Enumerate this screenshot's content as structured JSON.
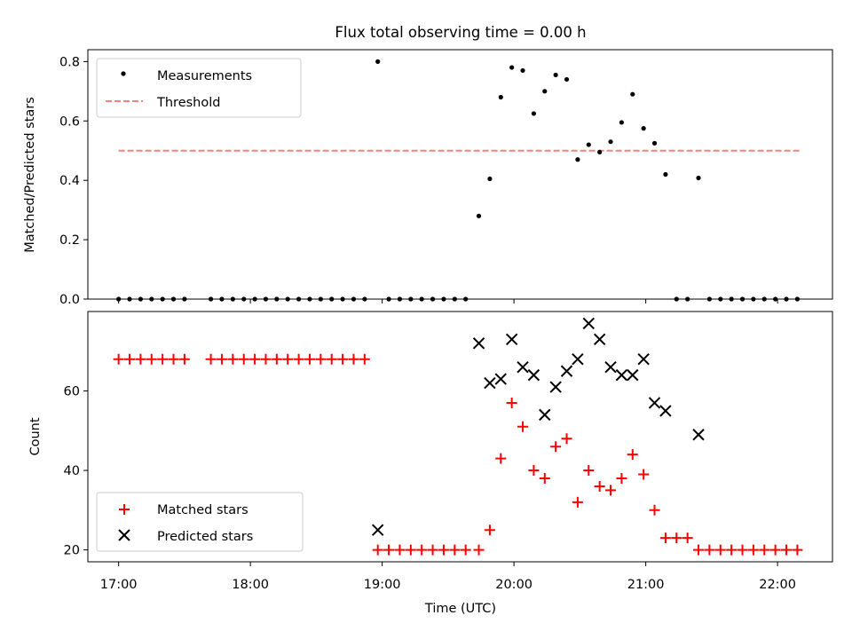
{
  "title": "Flux total observing time = 0.00 h",
  "chart_data": [
    {
      "type": "scatter",
      "ylabel": "Matched/Predicted stars",
      "xlim": [
        "16:46",
        "22:25"
      ],
      "ylim": [
        0,
        0.84
      ],
      "yticks": [
        0,
        0.2,
        0.4,
        0.6,
        0.8
      ],
      "ytick_labels": [
        "0.0",
        "0.2",
        "0.4",
        "0.6",
        "0.8"
      ],
      "legend": {
        "location": "upper left",
        "entries": [
          {
            "label": "Measurements",
            "marker": "dot",
            "color": "#000000"
          },
          {
            "label": "Threshold",
            "marker": "dashed-line",
            "color": "#ff7f7f"
          }
        ]
      },
      "threshold": {
        "y": 0.5,
        "x": [
          "17:00",
          "22:10"
        ],
        "color": "#ff7f7f"
      },
      "series": [
        {
          "marker": "dot",
          "color": "#000000",
          "points": [
            [
              "17:00",
              0
            ],
            [
              "17:05",
              0
            ],
            [
              "17:10",
              0
            ],
            [
              "17:15",
              0
            ],
            [
              "17:20",
              0
            ],
            [
              "17:25",
              0
            ],
            [
              "17:30",
              0
            ],
            [
              "17:42",
              0
            ],
            [
              "17:47",
              0
            ],
            [
              "17:52",
              0
            ],
            [
              "17:57",
              0
            ],
            [
              "18:02",
              0
            ],
            [
              "18:07",
              0
            ],
            [
              "18:12",
              0
            ],
            [
              "18:17",
              0
            ],
            [
              "18:22",
              0
            ],
            [
              "18:27",
              0
            ],
            [
              "18:32",
              0
            ],
            [
              "18:37",
              0
            ],
            [
              "18:42",
              0
            ],
            [
              "18:47",
              0
            ],
            [
              "18:52",
              0
            ],
            [
              "18:58",
              0.8
            ],
            [
              "19:03",
              0
            ],
            [
              "19:08",
              0
            ],
            [
              "19:13",
              0
            ],
            [
              "19:18",
              0
            ],
            [
              "19:23",
              0
            ],
            [
              "19:28",
              0
            ],
            [
              "19:33",
              0
            ],
            [
              "19:38",
              0
            ],
            [
              "19:44",
              0.28
            ],
            [
              "19:49",
              0.405
            ],
            [
              "19:54",
              0.68
            ],
            [
              "19:59",
              0.78
            ],
            [
              "20:04",
              0.77
            ],
            [
              "20:09",
              0.625
            ],
            [
              "20:14",
              0.7
            ],
            [
              "20:19",
              0.755
            ],
            [
              "20:24",
              0.74
            ],
            [
              "20:29",
              0.47
            ],
            [
              "20:34",
              0.52
            ],
            [
              "20:39",
              0.495
            ],
            [
              "20:44",
              0.53
            ],
            [
              "20:49",
              0.595
            ],
            [
              "20:54",
              0.69
            ],
            [
              "20:59",
              0.575
            ],
            [
              "21:04",
              0.525
            ],
            [
              "21:09",
              0.42
            ],
            [
              "21:14",
              0
            ],
            [
              "21:19",
              0
            ],
            [
              "21:24",
              0.408
            ],
            [
              "21:29",
              0
            ],
            [
              "21:34",
              0
            ],
            [
              "21:39",
              0
            ],
            [
              "21:44",
              0
            ],
            [
              "21:49",
              0
            ],
            [
              "21:54",
              0
            ],
            [
              "21:59",
              0
            ],
            [
              "22:04",
              0
            ],
            [
              "22:09",
              0
            ]
          ]
        }
      ]
    },
    {
      "type": "scatter",
      "xlabel": "Time (UTC)",
      "ylabel": "Count",
      "xlim": [
        "16:46",
        "22:25"
      ],
      "ylim": [
        17,
        80
      ],
      "yticks": [
        20,
        40,
        60
      ],
      "ytick_labels": [
        "20",
        "40",
        "60"
      ],
      "xticks": [
        "17:00",
        "18:00",
        "19:00",
        "20:00",
        "21:00",
        "22:00"
      ],
      "legend": {
        "location": "lower left",
        "entries": [
          {
            "label": "Matched stars",
            "marker": "plus",
            "color": "#ff0000"
          },
          {
            "label": "Predicted stars",
            "marker": "x",
            "color": "#000000"
          }
        ]
      },
      "series": [
        {
          "name": "Matched stars",
          "marker": "plus",
          "color": "#ff0000",
          "points": [
            [
              "17:00",
              68
            ],
            [
              "17:05",
              68
            ],
            [
              "17:10",
              68
            ],
            [
              "17:15",
              68
            ],
            [
              "17:20",
              68
            ],
            [
              "17:25",
              68
            ],
            [
              "17:30",
              68
            ],
            [
              "17:42",
              68
            ],
            [
              "17:47",
              68
            ],
            [
              "17:52",
              68
            ],
            [
              "17:57",
              68
            ],
            [
              "18:02",
              68
            ],
            [
              "18:07",
              68
            ],
            [
              "18:12",
              68
            ],
            [
              "18:17",
              68
            ],
            [
              "18:22",
              68
            ],
            [
              "18:27",
              68
            ],
            [
              "18:32",
              68
            ],
            [
              "18:37",
              68
            ],
            [
              "18:42",
              68
            ],
            [
              "18:47",
              68
            ],
            [
              "18:52",
              68
            ],
            [
              "18:58",
              20
            ],
            [
              "19:03",
              20
            ],
            [
              "19:08",
              20
            ],
            [
              "19:13",
              20
            ],
            [
              "19:18",
              20
            ],
            [
              "19:23",
              20
            ],
            [
              "19:28",
              20
            ],
            [
              "19:33",
              20
            ],
            [
              "19:38",
              20
            ],
            [
              "19:44",
              20
            ],
            [
              "19:49",
              25
            ],
            [
              "19:54",
              43
            ],
            [
              "19:59",
              57
            ],
            [
              "20:04",
              51
            ],
            [
              "20:09",
              40
            ],
            [
              "20:14",
              38
            ],
            [
              "20:19",
              46
            ],
            [
              "20:24",
              48
            ],
            [
              "20:29",
              32
            ],
            [
              "20:34",
              40
            ],
            [
              "20:39",
              36
            ],
            [
              "20:44",
              35
            ],
            [
              "20:49",
              38
            ],
            [
              "20:54",
              44
            ],
            [
              "20:59",
              39
            ],
            [
              "21:04",
              30
            ],
            [
              "21:09",
              23
            ],
            [
              "21:14",
              23
            ],
            [
              "21:19",
              23
            ],
            [
              "21:24",
              20
            ],
            [
              "21:29",
              20
            ],
            [
              "21:34",
              20
            ],
            [
              "21:39",
              20
            ],
            [
              "21:44",
              20
            ],
            [
              "21:49",
              20
            ],
            [
              "21:54",
              20
            ],
            [
              "21:59",
              20
            ],
            [
              "22:04",
              20
            ],
            [
              "22:09",
              20
            ]
          ]
        },
        {
          "name": "Predicted stars",
          "marker": "x",
          "color": "#000000",
          "points": [
            [
              "18:58",
              25
            ],
            [
              "19:44",
              72
            ],
            [
              "19:49",
              62
            ],
            [
              "19:54",
              63
            ],
            [
              "19:59",
              73
            ],
            [
              "20:04",
              66
            ],
            [
              "20:09",
              64
            ],
            [
              "20:14",
              54
            ],
            [
              "20:19",
              61
            ],
            [
              "20:24",
              65
            ],
            [
              "20:29",
              68
            ],
            [
              "20:34",
              77
            ],
            [
              "20:39",
              73
            ],
            [
              "20:44",
              66
            ],
            [
              "20:49",
              64
            ],
            [
              "20:54",
              64
            ],
            [
              "20:59",
              68
            ],
            [
              "21:04",
              57
            ],
            [
              "21:09",
              55
            ],
            [
              "21:24",
              49
            ]
          ]
        }
      ]
    }
  ]
}
